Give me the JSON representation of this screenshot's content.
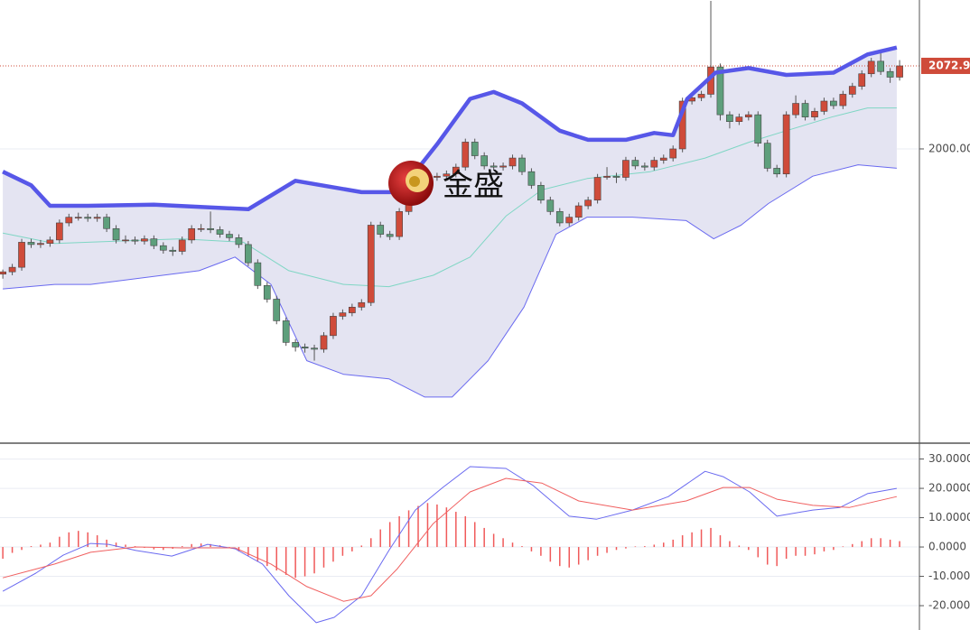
{
  "watermark": "金盛",
  "chart_data": [
    {
      "type": "candlestick",
      "xlim": [
        -0.3,
        97.1
      ],
      "ylim": [
        1742.3,
        2130.8
      ],
      "yticks": [
        {
          "value": 2000,
          "label": "2000.00"
        }
      ],
      "last_price": 2072.94,
      "up_color": "#cf4b3a",
      "down_color": "#5e9f7c",
      "fill_color": "#e4e4f2",
      "ohlc": [
        [
          1890,
          1894,
          1886,
          1892
        ],
        [
          1892,
          1899,
          1889,
          1896
        ],
        [
          1896,
          1921,
          1893,
          1918
        ],
        [
          1918,
          1921,
          1913,
          1916
        ],
        [
          1916,
          1920,
          1913,
          1917
        ],
        [
          1917,
          1923,
          1914,
          1920
        ],
        [
          1920,
          1938,
          1917,
          1935
        ],
        [
          1935,
          1943,
          1932,
          1940
        ],
        [
          1940,
          1944,
          1937,
          1940
        ],
        [
          1940,
          1943,
          1936,
          1939
        ],
        [
          1939,
          1943,
          1936,
          1940
        ],
        [
          1940,
          1943,
          1927,
          1930
        ],
        [
          1930,
          1933,
          1917,
          1920
        ],
        [
          1920,
          1924,
          1917,
          1920
        ],
        [
          1920,
          1923,
          1916,
          1919
        ],
        [
          1919,
          1924,
          1916,
          1921
        ],
        [
          1921,
          1924,
          1912,
          1915
        ],
        [
          1915,
          1918,
          1908,
          1911
        ],
        [
          1911,
          1914,
          1906,
          1910
        ],
        [
          1910,
          1923,
          1907,
          1920
        ],
        [
          1920,
          1933,
          1917,
          1930
        ],
        [
          1930,
          1934,
          1927,
          1930
        ],
        [
          1930,
          1945,
          1926,
          1929
        ],
        [
          1929,
          1932,
          1922,
          1925
        ],
        [
          1925,
          1928,
          1919,
          1922
        ],
        [
          1922,
          1925,
          1913,
          1916
        ],
        [
          1916,
          1919,
          1897,
          1900
        ],
        [
          1900,
          1903,
          1877,
          1880
        ],
        [
          1880,
          1883,
          1865,
          1868
        ],
        [
          1868,
          1871,
          1846,
          1849
        ],
        [
          1849,
          1852,
          1827,
          1830
        ],
        [
          1830,
          1833,
          1822,
          1826
        ],
        [
          1826,
          1829,
          1821,
          1825
        ],
        [
          1825,
          1828,
          1814,
          1824
        ],
        [
          1824,
          1839,
          1821,
          1836
        ],
        [
          1836,
          1856,
          1833,
          1853
        ],
        [
          1853,
          1859,
          1850,
          1856
        ],
        [
          1856,
          1864,
          1853,
          1861
        ],
        [
          1861,
          1868,
          1858,
          1865
        ],
        [
          1865,
          1936,
          1862,
          1933
        ],
        [
          1933,
          1936,
          1922,
          1925
        ],
        [
          1925,
          1928,
          1920,
          1923
        ],
        [
          1923,
          1948,
          1920,
          1945
        ],
        [
          1945,
          1961,
          1942,
          1958
        ],
        [
          1958,
          1985,
          1955,
          1978
        ],
        [
          1978,
          1981,
          1972,
          1975
        ],
        [
          1975,
          1979,
          1972,
          1976
        ],
        [
          1976,
          1981,
          1973,
          1978
        ],
        [
          1978,
          1987,
          1975,
          1984
        ],
        [
          1984,
          2009,
          1981,
          2006
        ],
        [
          2006,
          2009,
          1991,
          1994
        ],
        [
          1994,
          1997,
          1982,
          1985
        ],
        [
          1985,
          1988,
          1981,
          1984
        ],
        [
          1984,
          1988,
          1981,
          1985
        ],
        [
          1985,
          1995,
          1982,
          1992
        ],
        [
          1992,
          1995,
          1977,
          1980
        ],
        [
          1980,
          1983,
          1965,
          1968
        ],
        [
          1968,
          1971,
          1952,
          1955
        ],
        [
          1955,
          1958,
          1942,
          1945
        ],
        [
          1945,
          1948,
          1932,
          1935
        ],
        [
          1935,
          1943,
          1932,
          1940
        ],
        [
          1940,
          1953,
          1937,
          1950
        ],
        [
          1950,
          1958,
          1947,
          1955
        ],
        [
          1955,
          1978,
          1952,
          1975
        ],
        [
          1975,
          1984,
          1973,
          1976
        ],
        [
          1976,
          1979,
          1970,
          1975
        ],
        [
          1975,
          1993,
          1972,
          1990
        ],
        [
          1990,
          1993,
          1982,
          1985
        ],
        [
          1985,
          1988,
          1981,
          1984
        ],
        [
          1984,
          1993,
          1981,
          1990
        ],
        [
          1990,
          1995,
          1987,
          1992
        ],
        [
          1992,
          2003,
          1989,
          2000
        ],
        [
          2000,
          2045,
          1997,
          2042
        ],
        [
          2042,
          2048,
          2039,
          2045
        ],
        [
          2045,
          2051,
          2042,
          2048
        ],
        [
          2048,
          2130,
          2045,
          2072
        ],
        [
          2072,
          2075,
          2025,
          2030
        ],
        [
          2030,
          2033,
          2018,
          2024
        ],
        [
          2024,
          2031,
          2021,
          2028
        ],
        [
          2028,
          2033,
          2025,
          2030
        ],
        [
          2030,
          2033,
          2002,
          2005
        ],
        [
          2005,
          2008,
          1980,
          1983
        ],
        [
          1983,
          1986,
          1975,
          1978
        ],
        [
          1978,
          2033,
          1975,
          2030
        ],
        [
          2030,
          2047,
          2027,
          2040
        ],
        [
          2040,
          2043,
          2025,
          2028
        ],
        [
          2028,
          2036,
          2025,
          2033
        ],
        [
          2033,
          2045,
          2030,
          2042
        ],
        [
          2042,
          2045,
          2035,
          2038
        ],
        [
          2038,
          2051,
          2035,
          2048
        ],
        [
          2048,
          2058,
          2045,
          2055
        ],
        [
          2055,
          2069,
          2052,
          2066
        ],
        [
          2066,
          2080,
          2063,
          2077
        ],
        [
          2077,
          2085,
          2065,
          2068
        ],
        [
          2068,
          2071,
          2058,
          2063
        ],
        [
          2063,
          2078,
          2060,
          2072.94
        ]
      ],
      "lines": [
        {
          "color": "#5757e8",
          "x": [
            0,
            3,
            5,
            9,
            16,
            26,
            31,
            38,
            42,
            46,
            49.5,
            52,
            55,
            59,
            62,
            66,
            69,
            71,
            72.5,
            75.5,
            79,
            83,
            88,
            91.6,
            94.7
          ],
          "values": [
            1980,
            1968,
            1950,
            1950,
            1951,
            1947,
            1972,
            1962,
            1962,
            2004,
            2044,
            2050,
            2040,
            2016,
            2008,
            2008,
            2014,
            2012,
            2044,
            2067,
            2071,
            2065,
            2067,
            2083,
            2089
          ]
        },
        {
          "color": "#7fd6c4",
          "x": [
            0,
            5.5,
            18.9,
            25.5,
            30.3,
            36.1,
            40.9,
            45.6,
            49.5,
            53.3,
            57.1,
            61.9,
            68.6,
            74.4,
            79.1,
            83,
            87.8,
            91.6,
            94.7
          ],
          "values": [
            1926,
            1917,
            1921,
            1918,
            1893,
            1881,
            1879,
            1889,
            1905,
            1941,
            1964,
            1974,
            1980,
            1992,
            2006,
            2016,
            2028,
            2036,
            2036
          ]
        },
        {
          "color": "#6a6af0",
          "x": [
            0,
            5.5,
            9.3,
            20.8,
            24.6,
            28.4,
            32.2,
            36.1,
            40.9,
            44.7,
            47.6,
            51.4,
            55.2,
            58.6,
            61.9,
            66.7,
            72.4,
            75.3,
            78.2,
            81.1,
            85.8,
            90.6,
            94.7
          ],
          "values": [
            1877,
            1881,
            1881,
            1893,
            1905,
            1881,
            1814,
            1802,
            1798,
            1782,
            1782,
            1814,
            1861,
            1925,
            1940,
            1940,
            1937,
            1921,
            1933,
            1952,
            1976,
            1986,
            1983
          ]
        }
      ]
    },
    {
      "type": "macd",
      "xlim": [
        -0.3,
        97.1
      ],
      "ylim": [
        -28.3,
        35.1
      ],
      "yticks": [
        {
          "value": 30,
          "label": "30.0000"
        },
        {
          "value": 20,
          "label": "20.0000"
        },
        {
          "value": 10,
          "label": "10.0000"
        },
        {
          "value": 0,
          "label": "0.0000"
        },
        {
          "value": -10,
          "label": "-10.0000"
        },
        {
          "value": -20,
          "label": "-20.0000"
        }
      ],
      "histogram": {
        "color": "#f05a5a",
        "values": [
          -4,
          -2,
          -1,
          0.3,
          0.8,
          1.5,
          3.5,
          5,
          5.5,
          5,
          4,
          2.5,
          1.5,
          0.8,
          0.3,
          -0.3,
          -0.8,
          -1,
          -0.6,
          0.3,
          1,
          1.2,
          1,
          0.6,
          -0.3,
          -1.5,
          -3,
          -5,
          -6.5,
          -8,
          -9.5,
          -10.5,
          -10,
          -9,
          -7,
          -5,
          -3,
          -1.5,
          0.5,
          3,
          6,
          8.5,
          10.5,
          12.5,
          14,
          15,
          14.5,
          13.5,
          12,
          10.5,
          8.5,
          6.5,
          4.5,
          3,
          1.5,
          0.3,
          -1.5,
          -3,
          -5,
          -6.5,
          -7,
          -6,
          -4.5,
          -3,
          -2,
          -1,
          -0.5,
          0.2,
          0.3,
          0.8,
          1.5,
          2.5,
          4,
          5,
          6,
          6.5,
          4,
          2,
          0.5,
          -1,
          -3.5,
          -6,
          -6.5,
          -4,
          -3,
          -3,
          -2.5,
          -1.5,
          -1,
          0.2,
          1,
          2,
          3,
          3,
          2.5,
          2
        ]
      },
      "lines": [
        {
          "color": "#6a6af0",
          "x": [
            0,
            3.5,
            6.4,
            9.3,
            11.2,
            14.1,
            17.9,
            21.7,
            24.6,
            27.5,
            30.3,
            33.2,
            35.1,
            38,
            40.9,
            43.7,
            46.6,
            49.5,
            53.3,
            56.2,
            60,
            62.9,
            66.7,
            70.5,
            74.4,
            76.3,
            79.1,
            82,
            85.8,
            88.7,
            91.6,
            94.7
          ],
          "values": [
            -15.1,
            -8.9,
            -2.8,
            1.2,
            0.9,
            -1.2,
            -3.1,
            0.9,
            -0.6,
            -5.8,
            -16.6,
            -25.8,
            -24,
            -16.6,
            -1.2,
            12.6,
            20.3,
            27.4,
            26.8,
            20.9,
            10.5,
            9.5,
            12.6,
            17.2,
            25.8,
            24,
            18.8,
            10.5,
            12.6,
            13.5,
            18.2,
            20
          ]
        },
        {
          "color": "#f06060",
          "x": [
            0,
            5.5,
            9.3,
            14.1,
            18.9,
            24.6,
            28.4,
            32.2,
            36.1,
            39,
            41.8,
            45.6,
            49.5,
            53.3,
            57.1,
            61,
            66.7,
            72.4,
            76.3,
            79.1,
            82,
            85.8,
            89.7,
            94.7
          ],
          "values": [
            -10.5,
            -5.8,
            -1.8,
            0,
            -0.3,
            -0.3,
            -5.8,
            -13.5,
            -18.5,
            -16.6,
            -7.4,
            8,
            18.8,
            23.4,
            21.8,
            15.7,
            12.6,
            15.7,
            20.3,
            20.3,
            16.3,
            14.2,
            13.5,
            17.2
          ]
        }
      ]
    }
  ]
}
